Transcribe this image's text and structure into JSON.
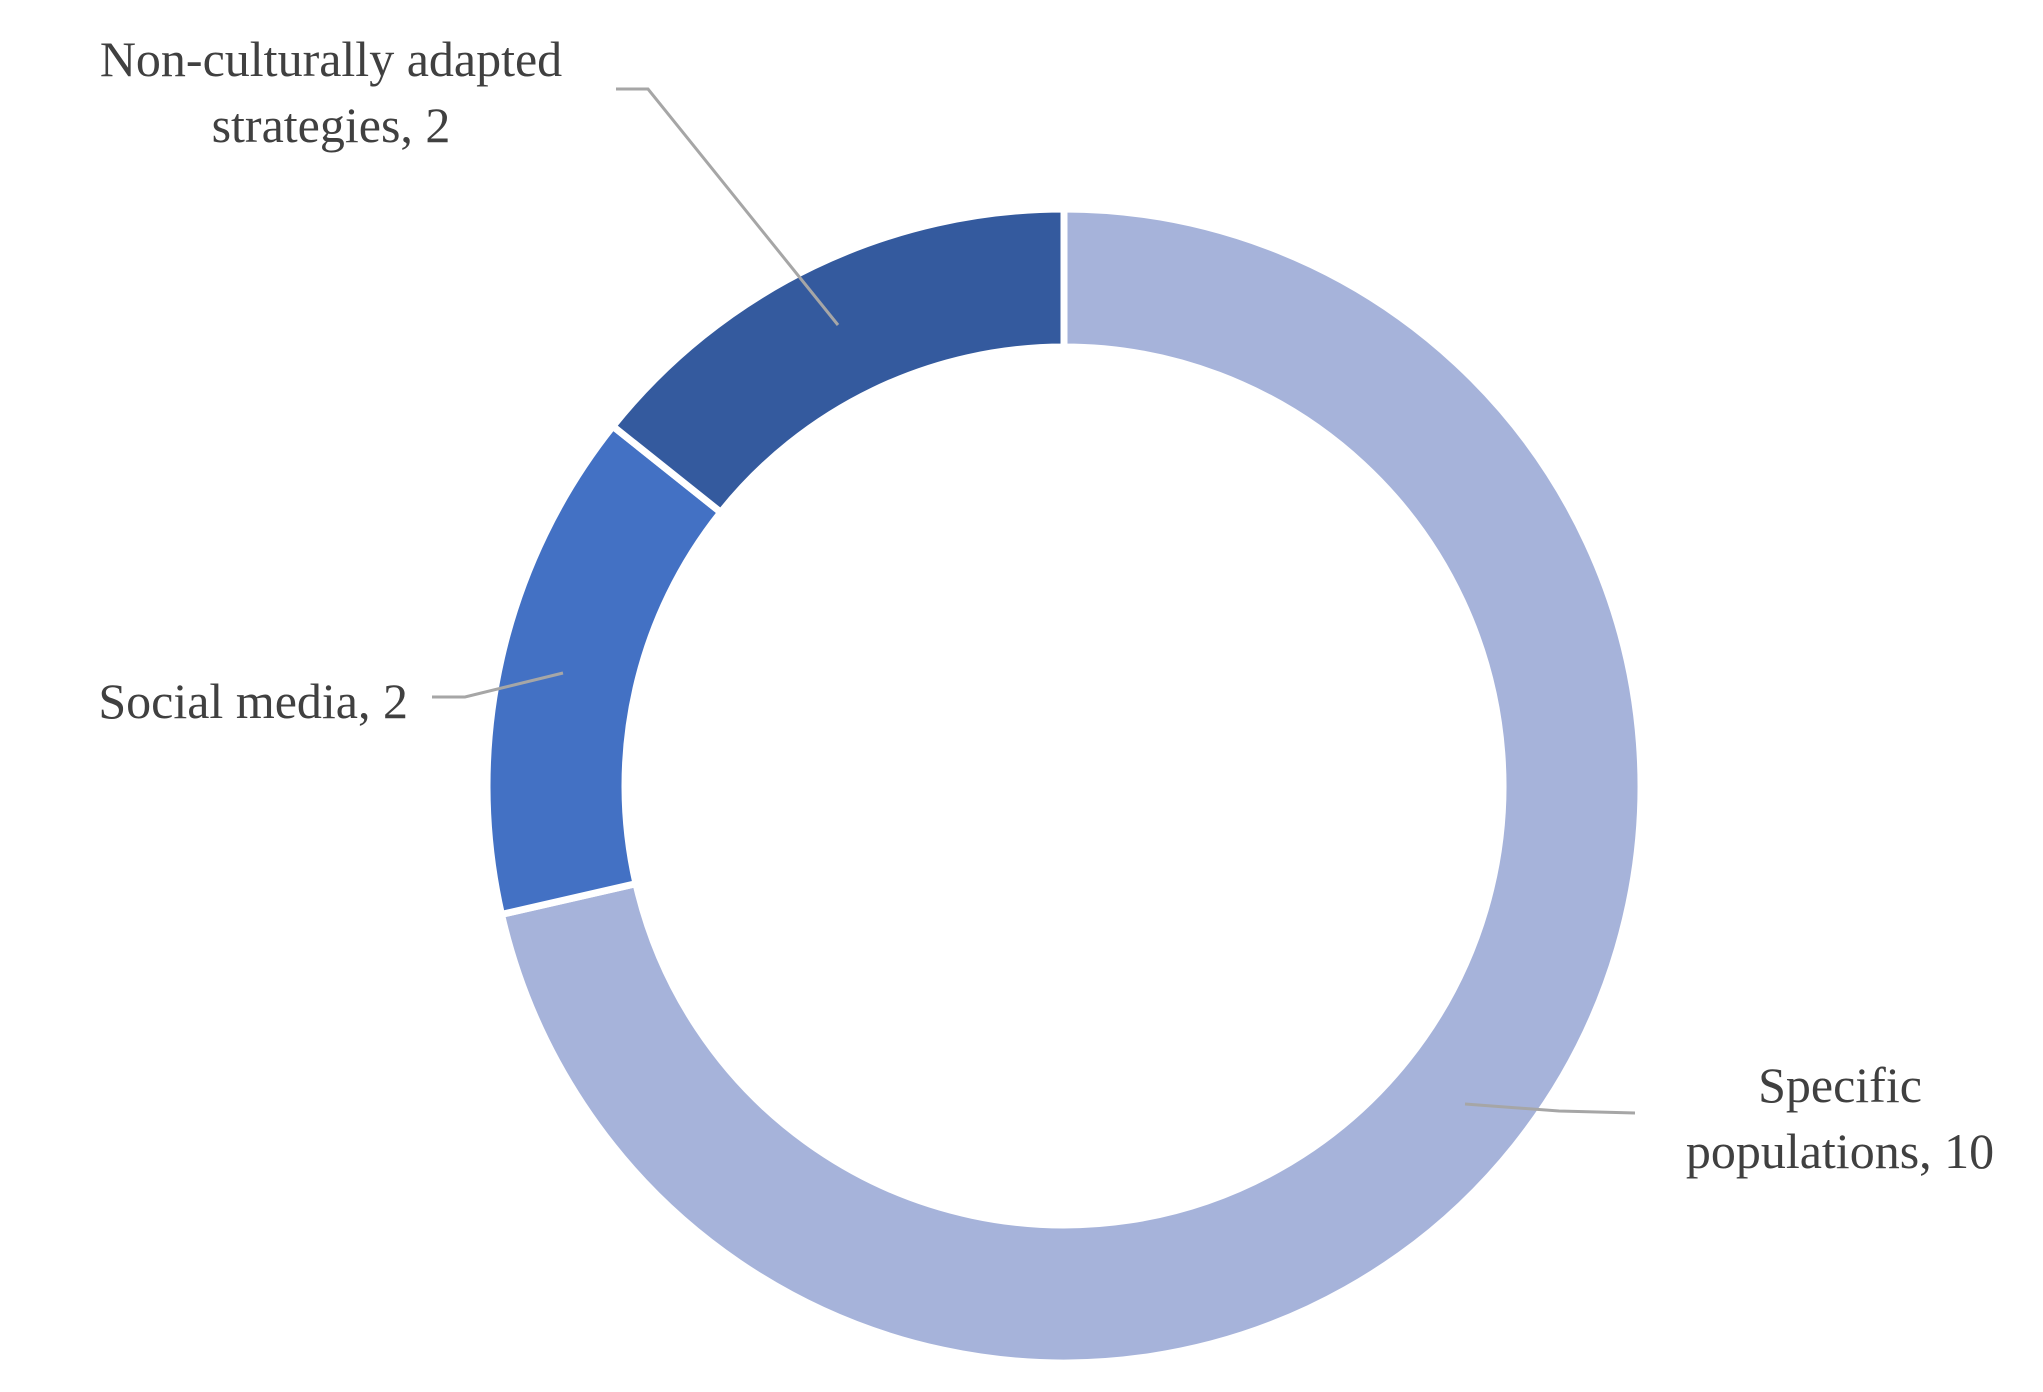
{
  "chart_data": {
    "type": "donut",
    "categories": [
      "Specific populations",
      "Social media",
      "Non-culturally adapted strategies"
    ],
    "values": [
      10,
      2,
      2
    ],
    "value_labels": [
      "Specific populations, 10",
      "Social media, 2",
      "Non-culturally adapted strategies, 2"
    ],
    "colors": [
      "#a6b3da",
      "#4371c4",
      "#345a9e"
    ]
  }
}
